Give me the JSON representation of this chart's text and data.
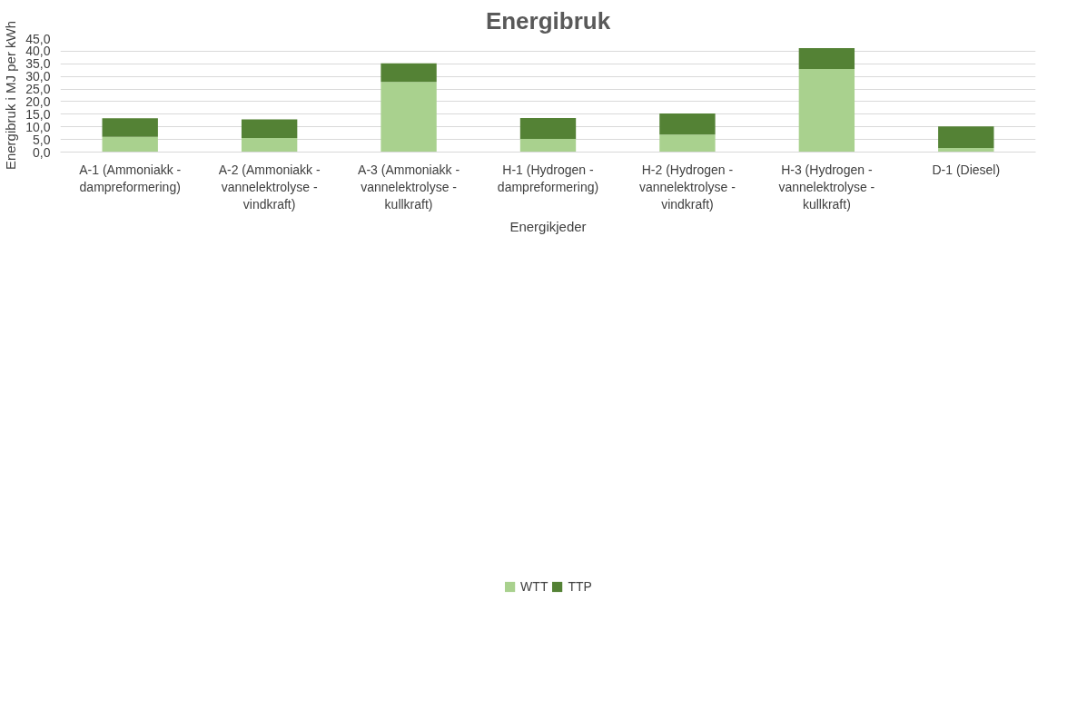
{
  "chart_data": {
    "type": "bar",
    "stacked": true,
    "title": "Energibruk",
    "xlabel": "Energikjeder",
    "ylabel": "Energibruk i MJ per kWh",
    "categories": [
      "A-1 (Ammoniakk - dampreformering)",
      "A-2 (Ammoniakk - vannelektrolyse - vindkraft)",
      "A-3 (Ammoniakk - vannelektrolyse - kullkraft)",
      "H-1 (Hydrogen - dampreformering)",
      "H-2 (Hydrogen - vannelektrolyse - vindkraft)",
      "H-3 (Hydrogen - vannelektrolyse - kullkraft)",
      "D-1 (Diesel)"
    ],
    "series": [
      {
        "name": "WTT",
        "color": "#a9d18e",
        "values": [
          6.0,
          5.6,
          27.8,
          5.2,
          6.9,
          32.9,
          1.6
        ]
      },
      {
        "name": "TTP",
        "color": "#548235",
        "values": [
          7.4,
          7.4,
          7.4,
          8.3,
          8.4,
          8.3,
          8.6
        ]
      }
    ],
    "ylim": [
      0,
      45
    ],
    "yticks": [
      {
        "value": 0,
        "label": "0,0"
      },
      {
        "value": 5,
        "label": "5,0"
      },
      {
        "value": 10,
        "label": "10,0"
      },
      {
        "value": 15,
        "label": "15,0"
      },
      {
        "value": 20,
        "label": "20,0"
      },
      {
        "value": 25,
        "label": "25,0"
      },
      {
        "value": 30,
        "label": "30,0"
      },
      {
        "value": 35,
        "label": "35,0"
      },
      {
        "value": 40,
        "label": "40,0"
      },
      {
        "value": 45,
        "label": "45,0"
      }
    ],
    "grid": "y",
    "legend": "bottom"
  }
}
